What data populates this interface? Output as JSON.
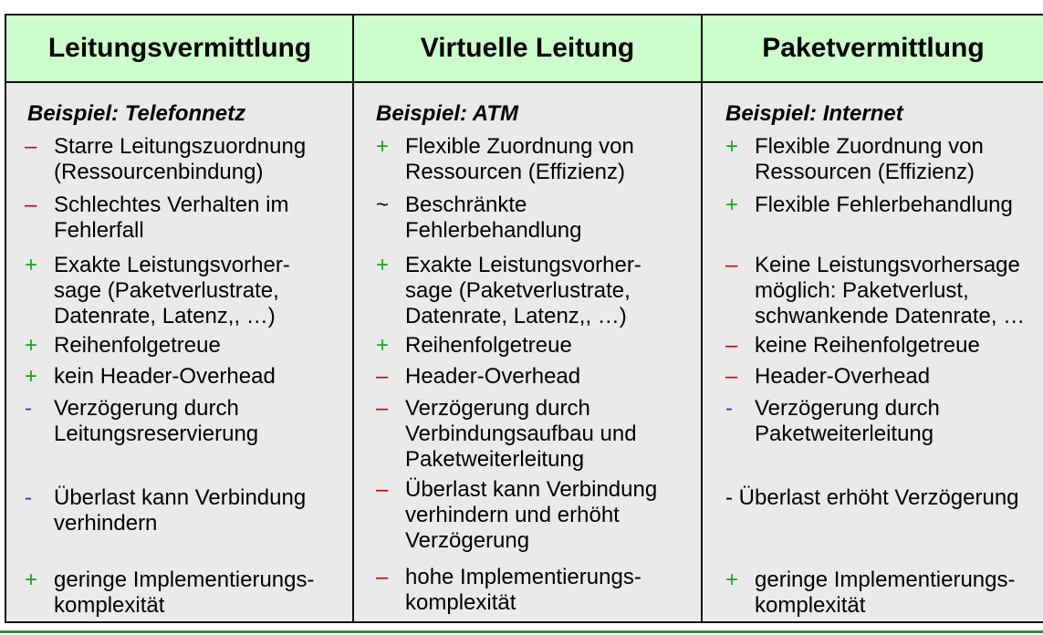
{
  "headers": [
    "Leitungsvermittlung",
    "Virtuelle Leitung",
    "Paketvermittlung"
  ],
  "columns": [
    {
      "example": "Beispiel: Telefonnetz",
      "items": [
        {
          "sym": "–",
          "text": "Starre Leitungszuordnung\n(Ressourcenbindung)"
        },
        {
          "sym": "–",
          "text": "Schlechtes Verhalten im\nFehlerfall"
        },
        {
          "sym": "+",
          "text": "Exakte Leistungsvorher-\nsage (Paketverlustrate,\nDatenrate, Latenz,, …)"
        },
        {
          "sym": "+",
          "text": "Reihenfolgetreue"
        },
        {
          "sym": "+",
          "text": "kein Header-Overhead"
        },
        {
          "sym": "-",
          "text": "Verzögerung durch\nLeitungsreservierung"
        },
        {
          "sym": "-",
          "text": "Überlast kann Verbindung\nverhindern"
        },
        {
          "sym": "+",
          "text": "geringe Implementierungs-\nkomplexität"
        }
      ]
    },
    {
      "example": "Beispiel: ATM",
      "items": [
        {
          "sym": "+",
          "text": "Flexible Zuordnung von\nRessourcen (Effizienz)"
        },
        {
          "sym": "~",
          "text": "Beschränkte\nFehlerbehandlung"
        },
        {
          "sym": "+",
          "text": "Exakte Leistungsvorher-\nsage (Paketverlustrate,\nDatenrate, Latenz,, …)"
        },
        {
          "sym": "+",
          "text": "Reihenfolgetreue"
        },
        {
          "sym": "–",
          "text": "Header-Overhead"
        },
        {
          "sym": "–",
          "text": "Verzögerung durch\nVerbindungsaufbau und\nPaketweiterleitung"
        },
        {
          "sym": "–",
          "text": "Überlast kann Verbindung\nverhindern und erhöht\nVerzögerung"
        },
        {
          "sym": "–",
          "text": "hohe Implementierungs-\nkomplexität"
        }
      ]
    },
    {
      "example": "Beispiel: Internet",
      "items": [
        {
          "sym": "+",
          "text": "Flexible Zuordnung von\nRessourcen (Effizienz)"
        },
        {
          "sym": "+",
          "text": "Flexible Fehlerbehandlung"
        },
        {
          "sym": "–",
          "text": "Keine Leistungsvorhersage\nmöglich: Paketverlust,\nschwankende Datenrate, …"
        },
        {
          "sym": "–",
          "text": "keine Reihenfolgetreue"
        },
        {
          "sym": "–",
          "text": "Header-Overhead"
        },
        {
          "sym": "-",
          "text": "Verzögerung durch\nPaketweiterleitung"
        },
        {
          "sym": "",
          "text": "- Überlast erhöht Verzögerung"
        },
        {
          "sym": "+",
          "text": "geringe Implementierungs-\nkomplexität"
        }
      ]
    }
  ],
  "colors": {
    "header_bg": "#ccffcc",
    "body_bg": "#eaeaea",
    "minus": "#d40000",
    "plus": "#16a816",
    "dash": "#1a3fcf"
  }
}
